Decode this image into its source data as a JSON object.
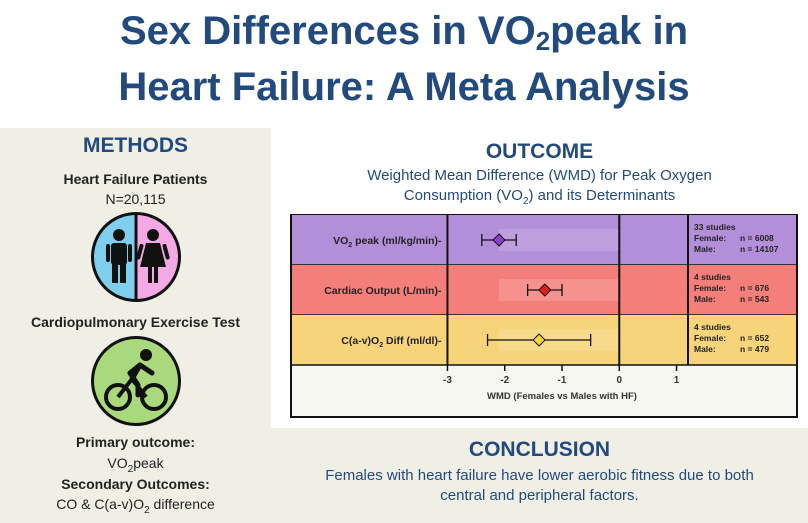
{
  "title": {
    "line1_a": "Sex Differences in VO",
    "line1_sub": "2",
    "line1_b": "peak in",
    "line2": "Heart Failure: A Meta Analysis"
  },
  "methods": {
    "header": "METHODS",
    "population_label": "Heart Failure Patients",
    "population_n": "N=20,115",
    "test_label": "Cardiopulmonary  Exercise Test",
    "primary_label": "Primary outcome:",
    "primary_value_a": "VO",
    "primary_value_sub": "2",
    "primary_value_b": "peak",
    "secondary_label": "Secondary Outcomes:",
    "secondary_value_a": "CO & C(a-v)O",
    "secondary_value_sub": "2",
    "secondary_value_b": " difference"
  },
  "outcome": {
    "header": "OUTCOME",
    "subtitle_line1": "Weighted Mean Difference (WMD) for Peak Oxygen",
    "subtitle_line2_a": "Consumption  (VO",
    "subtitle_line2_sub": "2",
    "subtitle_line2_b": ")  and its Determinants"
  },
  "conclusion": {
    "header": "CONCLUSION",
    "line1": "Females with heart failure have lower aerobic fitness due to both",
    "line2": "central and peripheral factors."
  },
  "colors": {
    "title": "#234a7c",
    "vo2": "#b48fd9",
    "co": "#f47f7a",
    "cav": "#f7d479"
  },
  "chart_data": {
    "type": "forest",
    "xlabel": "WMD (Females vs Males with HF)",
    "xlim": [
      -3.2,
      1.2
    ],
    "xticks": [
      -3,
      -2,
      -1,
      0,
      1
    ],
    "tick_labels": [
      "-3",
      "-2",
      "-1",
      "0",
      "1"
    ],
    "rows": [
      {
        "label_a": "VO",
        "label_sub": "2",
        "label_b": " peak (ml/kg/min)",
        "estimate": -2.1,
        "ci": [
          -2.4,
          -1.8
        ],
        "color": "#8e3fd0",
        "band": "#b48fd9",
        "studies": "33 studies",
        "female_label": "Female:",
        "female": "n = 6008",
        "male_label": "Male:",
        "male": "n = 14107"
      },
      {
        "label_a": "Cardiac Output (L/min)",
        "label_sub": "",
        "label_b": "",
        "estimate": -1.3,
        "ci": [
          -1.6,
          -1.0
        ],
        "color": "#e0201f",
        "band": "#f47f7a",
        "studies": "4 studies",
        "female_label": "Female:",
        "female": "n = 676",
        "male_label": "Male:",
        "male": "n = 543"
      },
      {
        "label_a": "C(a-v)O",
        "label_sub": "2",
        "label_b": " Diff (ml/dl)",
        "estimate": -1.4,
        "ci": [
          -2.3,
          -0.5
        ],
        "color": "#f6d53a",
        "band": "#f7d479",
        "studies": "4 studies",
        "female_label": "Female:",
        "female": "n = 652",
        "male_label": "Male:",
        "male": "n = 479"
      }
    ]
  }
}
